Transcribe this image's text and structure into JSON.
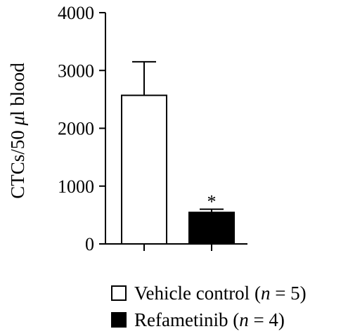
{
  "chart_data": {
    "type": "bar",
    "title": "",
    "xlabel": "",
    "ylabel": "CTCs/50 μl blood",
    "ylabel_parts": {
      "pre": "CTCs/50 ",
      "unit_italic": "μ",
      "post": "l blood"
    },
    "ylim": [
      0,
      4000
    ],
    "yticks": [
      0,
      1000,
      2000,
      3000,
      4000
    ],
    "ytick_labels": [
      "0",
      "1000",
      "2000",
      "3000",
      "4000"
    ],
    "grid": false,
    "legend_position": "bottom",
    "categories": [
      "Vehicle control (n = 5)",
      "Refametinib (n = 4)"
    ],
    "values": [
      2570,
      545
    ],
    "error_upper": [
      3150,
      600
    ],
    "fill_colors": [
      "#ffffff",
      "#000000"
    ],
    "annotations": [
      {
        "category_index": 1,
        "text": "*"
      }
    ]
  },
  "legend": {
    "items": [
      {
        "name_pre": "Vehicle control (",
        "n_symbol": "n",
        "name_post": " = 5)",
        "color": "#ffffff"
      },
      {
        "name_pre": "Refametinib (",
        "n_symbol": "n",
        "name_post": " = 4)",
        "color": "#000000"
      }
    ]
  }
}
